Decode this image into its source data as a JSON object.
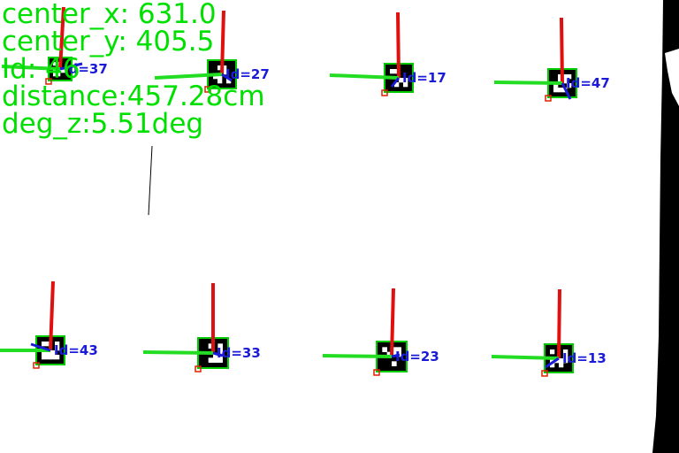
{
  "readout": {
    "center_x": "center_x: 631.0",
    "center_y": "center_y: 405.5",
    "id": "Id: 46",
    "distance": "distance:457.28cm",
    "deg_z": "deg_z:5.51deg"
  },
  "markers": [
    {
      "label": "Id=37"
    },
    {
      "label": "Id=27"
    },
    {
      "label": "Id=17"
    },
    {
      "label": "Id=47"
    },
    {
      "label": "Id=43"
    },
    {
      "label": "Id=33"
    },
    {
      "label": "Id=23"
    },
    {
      "label": "Id=13"
    }
  ],
  "colors": {
    "text": "#00e000",
    "x_axis": "#22dd22",
    "y_axis": "#e01010",
    "z_axis": "#1a1ad8",
    "marker_border": "#00cc00",
    "corner": "#dd2200",
    "edge": "#000000"
  }
}
